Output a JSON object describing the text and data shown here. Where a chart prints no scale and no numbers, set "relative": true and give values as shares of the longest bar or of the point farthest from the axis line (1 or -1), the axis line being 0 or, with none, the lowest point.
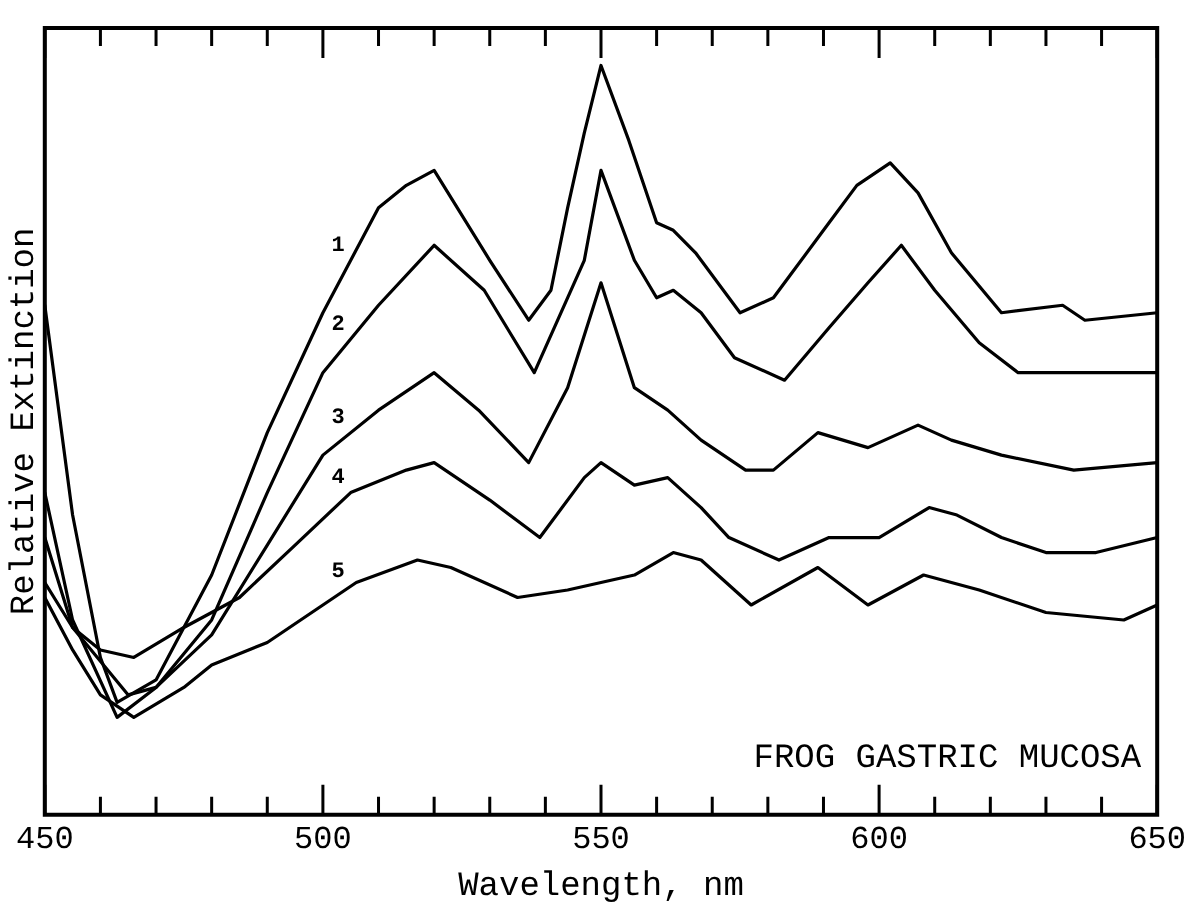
{
  "chart_data": {
    "type": "line",
    "xlabel": "Wavelength, nm",
    "ylabel": "Relative Extinction",
    "relative": true,
    "xlim": [
      450,
      650
    ],
    "xticks": [
      450,
      {
        "value": 460,
        "label": null
      },
      {
        "value": 470,
        "label": null
      },
      {
        "value": 480,
        "label": null
      },
      {
        "value": 490,
        "label": null
      },
      500,
      {
        "value": 510,
        "label": null
      },
      {
        "value": 520,
        "label": null
      },
      {
        "value": 530,
        "label": null
      },
      {
        "value": 540,
        "label": null
      },
      550,
      {
        "value": 560,
        "label": null
      },
      {
        "value": 570,
        "label": null
      },
      {
        "value": 580,
        "label": null
      },
      {
        "value": 590,
        "label": null
      },
      600,
      {
        "value": 610,
        "label": null
      },
      {
        "value": 620,
        "label": null
      },
      {
        "value": 630,
        "label": null
      },
      {
        "value": 640,
        "label": null
      },
      650
    ],
    "grid": false,
    "legend": false,
    "marker": "none",
    "line_style": "solid",
    "annotations": [
      "FROG GASTRIC MUCOSA"
    ],
    "series": [
      {
        "name": "1",
        "color": "#000000",
        "x": [
          450,
          455,
          460,
          463,
          470,
          480,
          490,
          500,
          510,
          515,
          520,
          530,
          537,
          541,
          544,
          547,
          550,
          555,
          560,
          563,
          567,
          575,
          581,
          584,
          591,
          596,
          602,
          607,
          613,
          622,
          633,
          637,
          650
        ],
        "values": [
          0.68,
          0.4,
          0.21,
          0.15,
          0.18,
          0.32,
          0.51,
          0.67,
          0.81,
          0.84,
          0.86,
          0.74,
          0.66,
          0.7,
          0.81,
          0.91,
          1.0,
          0.9,
          0.79,
          0.78,
          0.75,
          0.67,
          0.69,
          0.72,
          0.79,
          0.84,
          0.87,
          0.83,
          0.75,
          0.67,
          0.68,
          0.66,
          0.67
        ]
      },
      {
        "name": "2",
        "color": "#000000",
        "x": [
          450,
          455,
          463,
          470,
          480,
          490,
          500,
          510,
          520,
          529,
          538,
          547,
          550,
          556,
          560,
          563,
          568,
          574,
          583,
          591,
          598,
          604,
          610,
          618,
          625,
          636,
          650
        ],
        "values": [
          0.43,
          0.26,
          0.13,
          0.17,
          0.26,
          0.43,
          0.59,
          0.68,
          0.76,
          0.7,
          0.59,
          0.74,
          0.86,
          0.74,
          0.69,
          0.7,
          0.67,
          0.61,
          0.58,
          0.65,
          0.71,
          0.76,
          0.7,
          0.63,
          0.59,
          0.59,
          0.59
        ]
      },
      {
        "name": "3",
        "color": "#000000",
        "x": [
          450,
          455,
          465,
          470,
          480,
          490,
          500,
          510,
          520,
          528,
          537,
          544,
          550,
          556,
          562,
          568,
          576,
          581,
          589,
          598,
          607,
          613,
          622,
          635,
          650
        ],
        "values": [
          0.37,
          0.25,
          0.16,
          0.17,
          0.24,
          0.36,
          0.48,
          0.54,
          0.59,
          0.54,
          0.47,
          0.57,
          0.71,
          0.57,
          0.54,
          0.5,
          0.46,
          0.46,
          0.51,
          0.49,
          0.52,
          0.5,
          0.48,
          0.46,
          0.47
        ]
      },
      {
        "name": "4",
        "color": "#000000",
        "x": [
          450,
          455,
          460,
          466,
          475,
          485,
          495,
          505,
          515,
          520,
          530,
          539,
          547,
          550,
          556,
          562,
          568,
          573,
          582,
          591,
          600,
          609,
          614,
          622,
          630,
          639,
          650
        ],
        "values": [
          0.31,
          0.25,
          0.22,
          0.21,
          0.25,
          0.29,
          0.36,
          0.43,
          0.46,
          0.47,
          0.42,
          0.37,
          0.45,
          0.47,
          0.44,
          0.45,
          0.41,
          0.37,
          0.34,
          0.37,
          0.37,
          0.41,
          0.4,
          0.37,
          0.35,
          0.35,
          0.37
        ]
      },
      {
        "name": "5",
        "color": "#000000",
        "x": [
          450,
          455,
          460,
          466,
          475,
          480,
          490,
          500,
          506,
          517,
          523,
          535,
          544,
          550,
          556,
          563,
          568,
          577,
          589,
          598,
          608,
          618,
          630,
          644,
          650
        ],
        "values": [
          0.29,
          0.22,
          0.16,
          0.13,
          0.17,
          0.2,
          0.23,
          0.28,
          0.31,
          0.34,
          0.33,
          0.29,
          0.3,
          0.31,
          0.32,
          0.35,
          0.34,
          0.28,
          0.33,
          0.28,
          0.32,
          0.3,
          0.27,
          0.26,
          0.28
        ]
      }
    ]
  }
}
